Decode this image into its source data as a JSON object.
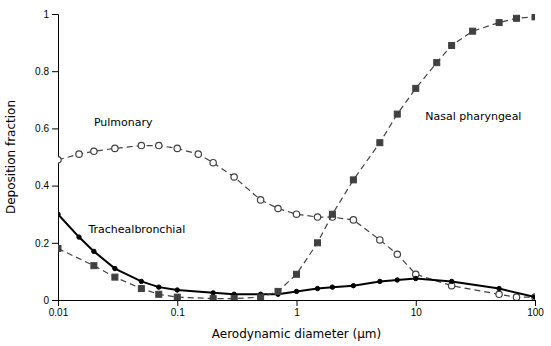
{
  "chart_data": {
    "type": "line",
    "xlabel": "Aerodynamic diameter (μm)",
    "ylabel": "Deposition fraction",
    "log": "x",
    "grid": false,
    "xlim": [
      0.01,
      100
    ],
    "xticks": [
      0.01,
      0.1,
      1,
      10,
      100
    ],
    "ylim": [
      0,
      1
    ],
    "yticks": [
      0,
      0.2,
      0.4,
      0.6,
      0.8,
      1
    ],
    "series": [
      {
        "color": "#404040",
        "marker": "open-circle",
        "line_style": "dashed",
        "x": [
          0.01,
          0.015,
          0.02,
          0.03,
          0.05,
          0.07,
          0.1,
          0.15,
          0.2,
          0.3,
          0.5,
          0.7,
          1.0,
          1.5,
          2.0,
          3.0,
          5.0,
          7.0,
          10.0,
          20.0,
          50.0,
          70.0,
          100.0
        ],
        "values": [
          0.49,
          0.51,
          0.52,
          0.53,
          0.54,
          0.54,
          0.53,
          0.51,
          0.48,
          0.43,
          0.35,
          0.32,
          0.3,
          0.29,
          0.29,
          0.28,
          0.21,
          0.16,
          0.09,
          0.05,
          0.02,
          0.01,
          0.01
        ]
      },
      {
        "color": "#000000",
        "marker": "circle",
        "line_style": "solid",
        "x": [
          0.01,
          0.015,
          0.02,
          0.03,
          0.05,
          0.07,
          0.1,
          0.2,
          0.3,
          0.5,
          0.7,
          1.0,
          1.5,
          2.0,
          3.0,
          5.0,
          7.0,
          10.0,
          20.0,
          50.0,
          100.0
        ],
        "values": [
          0.3,
          0.22,
          0.17,
          0.11,
          0.065,
          0.045,
          0.035,
          0.025,
          0.02,
          0.02,
          0.02,
          0.03,
          0.04,
          0.045,
          0.05,
          0.065,
          0.07,
          0.075,
          0.065,
          0.04,
          0.01
        ]
      },
      {
        "color": "#404040",
        "marker": "square",
        "line_style": "dashed",
        "x": [
          0.01,
          0.02,
          0.03,
          0.05,
          0.07,
          0.1,
          0.2,
          0.3,
          0.5,
          0.7,
          1.0,
          1.5,
          2.0,
          3.0,
          5.0,
          7.0,
          10.0,
          15.0,
          20.0,
          30.0,
          50.0,
          70.0,
          100.0
        ],
        "values": [
          0.18,
          0.12,
          0.08,
          0.04,
          0.02,
          0.01,
          0.005,
          0.005,
          0.01,
          0.03,
          0.09,
          0.2,
          0.3,
          0.42,
          0.55,
          0.65,
          0.74,
          0.83,
          0.89,
          0.94,
          0.97,
          0.985,
          0.99
        ]
      }
    ],
    "annotations": [
      {
        "text": "Pulmonary",
        "x": 0.02,
        "y": 0.61
      },
      {
        "text": "Trachealbronchial",
        "x": 0.018,
        "y": 0.235
      },
      {
        "text": "Nasal pharyngeal",
        "x": 12.0,
        "y": 0.63
      }
    ]
  }
}
